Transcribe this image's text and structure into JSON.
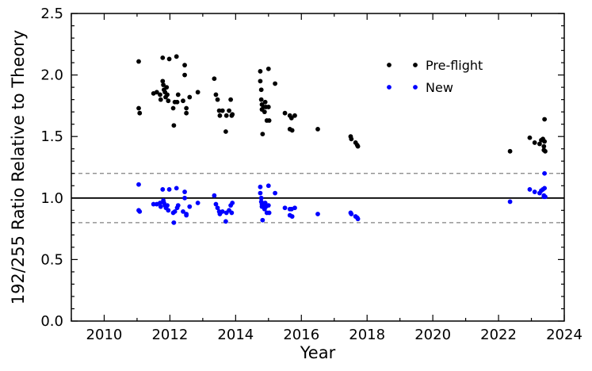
{
  "chart_data": {
    "type": "scatter",
    "title": "",
    "xlabel": "Year",
    "ylabel": "192/255 Ratio Relative to Theory",
    "xlim": [
      2009,
      2024
    ],
    "ylim": [
      0.0,
      2.5
    ],
    "xticks": [
      "2010",
      "2012",
      "2014",
      "2016",
      "2018",
      "2020",
      "2022",
      "2024"
    ],
    "yticks": [
      "0.0",
      "0.5",
      "1.0",
      "1.5",
      "2.0",
      "2.5"
    ],
    "grid": false,
    "legend_position": "top-right",
    "reference_lines": [
      {
        "y": 1.0,
        "style": "solid",
        "color": "#000000"
      },
      {
        "y": 1.2,
        "style": "dashed",
        "color": "#808080"
      },
      {
        "y": 0.8,
        "style": "dashed",
        "color": "#808080"
      }
    ],
    "series": [
      {
        "name": "Pre-flight",
        "color": "#000000",
        "points": [
          [
            2011.05,
            2.11
          ],
          [
            2011.05,
            1.73
          ],
          [
            2011.08,
            1.69
          ],
          [
            2011.5,
            1.85
          ],
          [
            2011.6,
            1.86
          ],
          [
            2011.7,
            1.84
          ],
          [
            2011.72,
            1.8
          ],
          [
            2011.78,
            2.14
          ],
          [
            2011.78,
            1.95
          ],
          [
            2011.8,
            1.92
          ],
          [
            2011.82,
            1.88
          ],
          [
            2011.85,
            1.86
          ],
          [
            2011.87,
            1.82
          ],
          [
            2011.9,
            1.9
          ],
          [
            2011.92,
            1.84
          ],
          [
            2011.95,
            1.79
          ],
          [
            2011.98,
            2.13
          ],
          [
            2012.1,
            1.73
          ],
          [
            2012.12,
            1.59
          ],
          [
            2012.15,
            1.78
          ],
          [
            2012.2,
            2.15
          ],
          [
            2012.22,
            1.78
          ],
          [
            2012.25,
            1.84
          ],
          [
            2012.4,
            1.79
          ],
          [
            2012.45,
            2.08
          ],
          [
            2012.45,
            2.0
          ],
          [
            2012.5,
            1.73
          ],
          [
            2012.5,
            1.69
          ],
          [
            2012.6,
            1.82
          ],
          [
            2012.85,
            1.86
          ],
          [
            2013.35,
            1.97
          ],
          [
            2013.4,
            1.84
          ],
          [
            2013.45,
            1.8
          ],
          [
            2013.5,
            1.71
          ],
          [
            2013.52,
            1.67
          ],
          [
            2013.6,
            1.71
          ],
          [
            2013.7,
            1.54
          ],
          [
            2013.72,
            1.67
          ],
          [
            2013.8,
            1.71
          ],
          [
            2013.85,
            1.8
          ],
          [
            2013.88,
            1.67
          ],
          [
            2013.9,
            1.68
          ],
          [
            2014.75,
            2.03
          ],
          [
            2014.75,
            1.95
          ],
          [
            2014.78,
            1.88
          ],
          [
            2014.78,
            1.8
          ],
          [
            2014.8,
            1.76
          ],
          [
            2014.8,
            1.72
          ],
          [
            2014.82,
            1.52
          ],
          [
            2014.85,
            1.74
          ],
          [
            2014.88,
            1.7
          ],
          [
            2014.9,
            1.78
          ],
          [
            2014.92,
            1.74
          ],
          [
            2014.95,
            1.63
          ],
          [
            2015.0,
            2.05
          ],
          [
            2015.0,
            1.74
          ],
          [
            2015.02,
            1.63
          ],
          [
            2015.2,
            1.93
          ],
          [
            2015.5,
            1.69
          ],
          [
            2015.65,
            1.67
          ],
          [
            2015.65,
            1.56
          ],
          [
            2015.7,
            1.65
          ],
          [
            2015.72,
            1.55
          ],
          [
            2015.8,
            1.67
          ],
          [
            2016.5,
            1.56
          ],
          [
            2017.5,
            1.5
          ],
          [
            2017.52,
            1.48
          ],
          [
            2017.65,
            1.45
          ],
          [
            2017.7,
            1.43
          ],
          [
            2017.72,
            1.42
          ],
          [
            2022.35,
            1.38
          ],
          [
            2022.95,
            1.49
          ],
          [
            2023.1,
            1.45
          ],
          [
            2023.25,
            1.44
          ],
          [
            2023.3,
            1.47
          ],
          [
            2023.35,
            1.48
          ],
          [
            2023.38,
            1.42
          ],
          [
            2023.38,
            1.39
          ],
          [
            2023.4,
            1.64
          ],
          [
            2023.4,
            1.46
          ],
          [
            2023.42,
            1.38
          ]
        ]
      },
      {
        "name": "New",
        "color": "#0000ff",
        "points": [
          [
            2011.05,
            1.11
          ],
          [
            2011.05,
            0.9
          ],
          [
            2011.08,
            0.89
          ],
          [
            2011.5,
            0.95
          ],
          [
            2011.6,
            0.95
          ],
          [
            2011.7,
            0.96
          ],
          [
            2011.72,
            0.93
          ],
          [
            2011.78,
            1.07
          ],
          [
            2011.8,
            0.98
          ],
          [
            2011.82,
            0.96
          ],
          [
            2011.85,
            0.94
          ],
          [
            2011.88,
            0.92
          ],
          [
            2011.92,
            0.94
          ],
          [
            2011.95,
            0.9
          ],
          [
            2011.98,
            1.07
          ],
          [
            2012.1,
            0.88
          ],
          [
            2012.12,
            0.8
          ],
          [
            2012.15,
            0.89
          ],
          [
            2012.2,
            1.08
          ],
          [
            2012.22,
            0.92
          ],
          [
            2012.25,
            0.94
          ],
          [
            2012.4,
            0.89
          ],
          [
            2012.45,
            1.05
          ],
          [
            2012.45,
            1.0
          ],
          [
            2012.5,
            0.87
          ],
          [
            2012.5,
            0.86
          ],
          [
            2012.6,
            0.93
          ],
          [
            2012.85,
            0.96
          ],
          [
            2013.35,
            1.02
          ],
          [
            2013.4,
            0.95
          ],
          [
            2013.45,
            0.92
          ],
          [
            2013.5,
            0.89
          ],
          [
            2013.52,
            0.87
          ],
          [
            2013.6,
            0.89
          ],
          [
            2013.7,
            0.81
          ],
          [
            2013.72,
            0.88
          ],
          [
            2013.8,
            0.9
          ],
          [
            2013.85,
            0.94
          ],
          [
            2013.88,
            0.88
          ],
          [
            2013.9,
            0.96
          ],
          [
            2014.75,
            1.09
          ],
          [
            2014.75,
            1.04
          ],
          [
            2014.78,
            1.0
          ],
          [
            2014.78,
            0.97
          ],
          [
            2014.8,
            0.95
          ],
          [
            2014.8,
            0.93
          ],
          [
            2014.82,
            0.82
          ],
          [
            2014.85,
            0.94
          ],
          [
            2014.88,
            0.91
          ],
          [
            2014.9,
            0.96
          ],
          [
            2014.92,
            0.93
          ],
          [
            2014.95,
            0.88
          ],
          [
            2015.0,
            1.1
          ],
          [
            2015.0,
            0.94
          ],
          [
            2015.02,
            0.88
          ],
          [
            2015.2,
            1.04
          ],
          [
            2015.5,
            0.92
          ],
          [
            2015.65,
            0.91
          ],
          [
            2015.65,
            0.86
          ],
          [
            2015.7,
            0.91
          ],
          [
            2015.72,
            0.85
          ],
          [
            2015.8,
            0.92
          ],
          [
            2016.5,
            0.87
          ],
          [
            2017.5,
            0.88
          ],
          [
            2017.52,
            0.87
          ],
          [
            2017.65,
            0.85
          ],
          [
            2017.7,
            0.84
          ],
          [
            2017.72,
            0.83
          ],
          [
            2022.35,
            0.97
          ],
          [
            2022.95,
            1.07
          ],
          [
            2023.1,
            1.05
          ],
          [
            2023.25,
            1.04
          ],
          [
            2023.3,
            1.06
          ],
          [
            2023.35,
            1.07
          ],
          [
            2023.38,
            1.02
          ],
          [
            2023.38,
            1.01
          ],
          [
            2023.4,
            1.2
          ],
          [
            2023.4,
            1.08
          ],
          [
            2023.42,
            1.01
          ]
        ]
      }
    ]
  }
}
